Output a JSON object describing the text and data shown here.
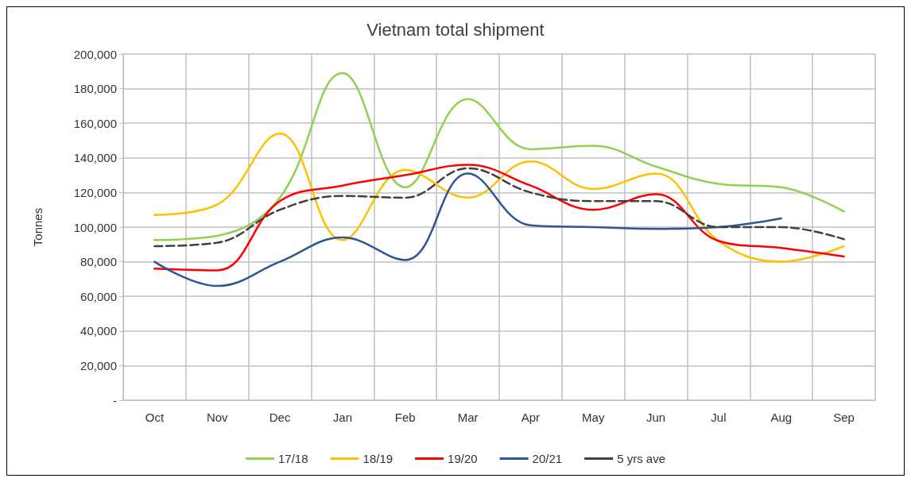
{
  "chart_data": {
    "type": "line",
    "title": "Vietnam total shipment",
    "ylabel": "Tonnes",
    "categories": [
      "Oct",
      "Nov",
      "Dec",
      "Jan",
      "Feb",
      "Mar",
      "Apr",
      "May",
      "Jun",
      "Jul",
      "Aug",
      "Sep"
    ],
    "series": [
      {
        "name": "17/18",
        "color": "#92d050",
        "values": [
          92500,
          95000,
          117000,
          189000,
          123000,
          174000,
          145000,
          147000,
          135000,
          125000,
          123000,
          109000
        ]
      },
      {
        "name": "18/19",
        "color": "#ffc000",
        "values": [
          107000,
          113000,
          154000,
          92500,
          133000,
          117000,
          138000,
          122000,
          131000,
          92000,
          80000,
          89000
        ]
      },
      {
        "name": "19/20",
        "color": "#ff0000",
        "values": [
          76000,
          75000,
          115000,
          124000,
          130000,
          136000,
          124000,
          110000,
          119000,
          92000,
          88000,
          83000
        ]
      },
      {
        "name": "20/21",
        "color": "#2f5597",
        "values": [
          80000,
          66000,
          80000,
          94000,
          81000,
          131000,
          101000,
          100000,
          99000,
          100000,
          105000,
          null
        ]
      },
      {
        "name": "5 yrs ave",
        "color": "#404040",
        "line_style": "dashed",
        "values": [
          89000,
          91000,
          110000,
          118000,
          117000,
          134000,
          120000,
          115000,
          115000,
          100000,
          100000,
          93000
        ]
      }
    ],
    "ylim": [
      0,
      200000
    ],
    "yticks": [
      {
        "value": 0,
        "label": "-"
      },
      {
        "value": 20000,
        "label": "20,000"
      },
      {
        "value": 40000,
        "label": "40,000"
      },
      {
        "value": 60000,
        "label": "60,000"
      },
      {
        "value": 80000,
        "label": "80,000"
      },
      {
        "value": 100000,
        "label": "100,000"
      },
      {
        "value": 120000,
        "label": "120,000"
      },
      {
        "value": 140000,
        "label": "140,000"
      },
      {
        "value": 160000,
        "label": "160,000"
      },
      {
        "value": 180000,
        "label": "180,000"
      },
      {
        "value": 200000,
        "label": "200,000"
      }
    ],
    "grid": true,
    "legend": "bottom",
    "marker": "none"
  }
}
